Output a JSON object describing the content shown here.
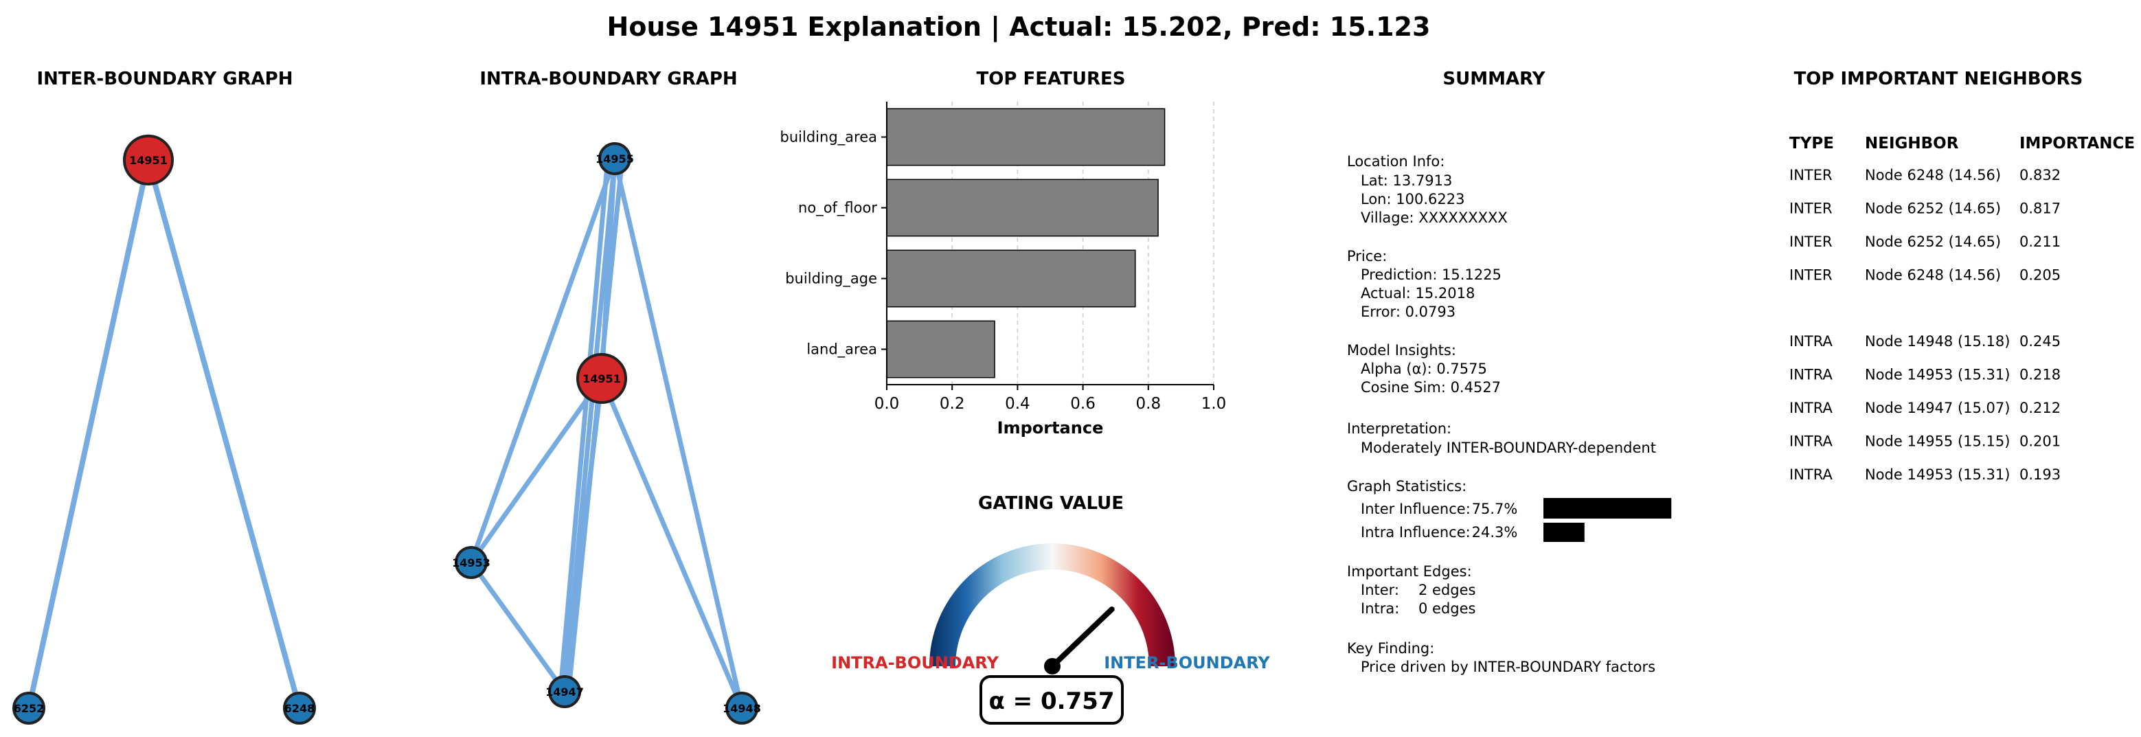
{
  "title": "House 14951 Explanation | Actual: 15.202, Pred: 15.123",
  "colors": {
    "edge": "#6fa7e0",
    "node_neighbor": "#1f77b4",
    "node_center": "#d62728",
    "bar": "#808080",
    "intra_label": "#d62728",
    "inter_label": "#1f77b4",
    "gauge_needle": "#000000"
  },
  "inter_graph": {
    "title": "INTER-BOUNDARY GRAPH",
    "center": "14951",
    "neighbors": [
      "6252",
      "6248"
    ]
  },
  "intra_graph": {
    "title": "INTRA-BOUNDARY GRAPH",
    "center": "14951",
    "nodes": [
      "14955",
      "14951",
      "14953",
      "14947",
      "14948"
    ]
  },
  "chart_data": {
    "type": "bar",
    "orientation": "horizontal",
    "title": "TOP FEATURES",
    "categories": [
      "building_area",
      "no_of_floor",
      "building_age",
      "land_area"
    ],
    "values": [
      0.85,
      0.83,
      0.76,
      0.33
    ],
    "xlabel": "Importance",
    "ylabel": "",
    "xlim": [
      0,
      1.0
    ],
    "xticks": [
      "0.0",
      "0.2",
      "0.4",
      "0.6",
      "0.8",
      "1.0"
    ],
    "grid": "x-dashed"
  },
  "gauge": {
    "title": "GATING VALUE",
    "value": 0.757,
    "left_label": "INTRA-BOUNDARY",
    "right_label": "INTER-BOUNDARY",
    "value_label": "α = 0.757"
  },
  "summary": {
    "title": "SUMMARY",
    "location_header": "Location Info:",
    "lat": "Lat: 13.7913",
    "lon": "Lon: 100.6223",
    "village": "Village: XXXXXXXXX",
    "price_header": "Price:",
    "prediction": "Prediction: 15.1225",
    "actual": "Actual: 15.2018",
    "error": "Error: 0.0793",
    "insights_header": "Model Insights:",
    "alpha": "Alpha (α): 0.7575",
    "cosine": "Cosine Sim: 0.4527",
    "interp_header": "Interpretation:",
    "interp_text": "Moderately INTER-BOUNDARY-dependent",
    "stats_header": "Graph Statistics:",
    "inter_influence_label": "Inter Influence:",
    "inter_influence_value": "75.7%",
    "inter_influence": 0.757,
    "intra_influence_label": "Intra Influence:",
    "intra_influence_value": "24.3%",
    "intra_influence": 0.243,
    "edges_header": "Important Edges:",
    "inter_edges_label": "Inter:",
    "inter_edges_value": "2 edges",
    "intra_edges_label": "Intra:",
    "intra_edges_value": "0 edges",
    "finding_header": "Key Finding:",
    "finding_text": "Price driven by INTER-BOUNDARY factors"
  },
  "neighbors": {
    "title": "TOP IMPORTANT NEIGHBORS",
    "headers": [
      "TYPE",
      "NEIGHBOR",
      "IMPORTANCE"
    ],
    "inter_rows": [
      [
        "INTER",
        "Node 6248 (14.56)",
        "0.832"
      ],
      [
        "INTER",
        "Node 6252 (14.65)",
        "0.817"
      ],
      [
        "INTER",
        "Node 6252 (14.65)",
        "0.211"
      ],
      [
        "INTER",
        "Node 6248 (14.56)",
        "0.205"
      ]
    ],
    "intra_rows": [
      [
        "INTRA",
        "Node 14948 (15.18)",
        "0.245"
      ],
      [
        "INTRA",
        "Node 14953 (15.31)",
        "0.218"
      ],
      [
        "INTRA",
        "Node 14947 (15.07)",
        "0.212"
      ],
      [
        "INTRA",
        "Node 14955 (15.15)",
        "0.201"
      ],
      [
        "INTRA",
        "Node 14953 (15.31)",
        "0.193"
      ]
    ]
  }
}
